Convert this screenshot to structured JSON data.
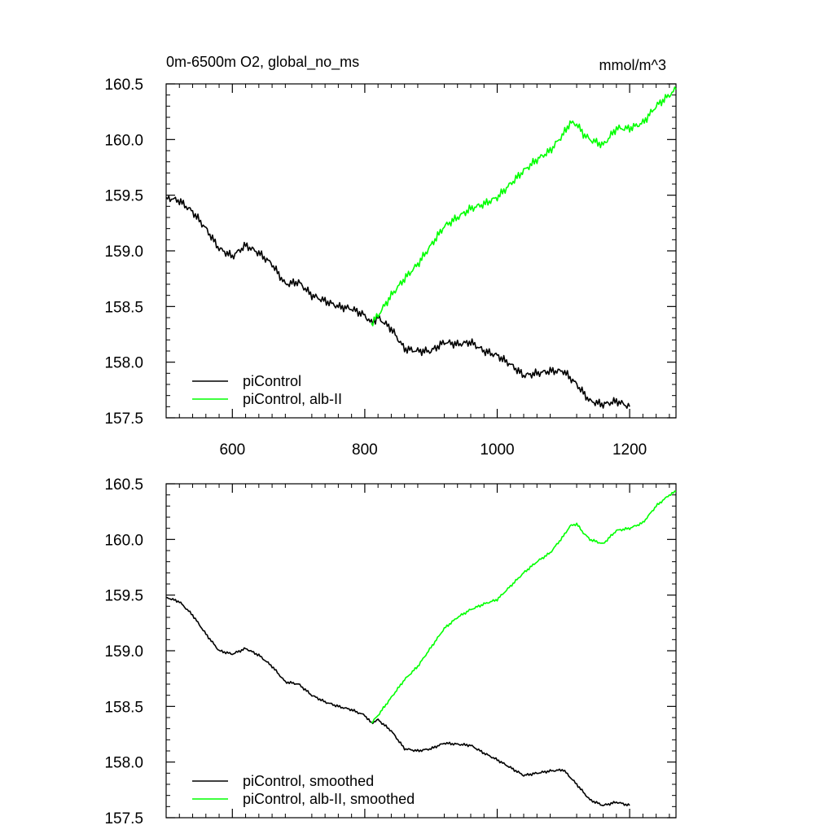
{
  "colors": {
    "control": "#000000",
    "experiment": "#00ff00",
    "frame": "#000000",
    "background": "#ffffff"
  },
  "chart_data": [
    {
      "type": "line",
      "title": "0m-6500m O2, global_no_ms",
      "units": "mmol/m^3",
      "xlim": [
        500,
        1270
      ],
      "ylim": [
        157.5,
        160.5
      ],
      "x_ticks": [
        "600",
        "800",
        "1000",
        "1200"
      ],
      "y_ticks": [
        "157.5",
        "158.0",
        "158.5",
        "159.0",
        "159.5",
        "160.0",
        "160.5"
      ],
      "grid": false,
      "legend_position": "bottom-left",
      "series": [
        {
          "name": "piControl",
          "color": "#000000",
          "x": [
            500,
            520,
            540,
            560,
            580,
            600,
            620,
            640,
            660,
            680,
            700,
            720,
            740,
            760,
            780,
            800,
            810,
            820,
            840,
            860,
            880,
            900,
            920,
            940,
            960,
            980,
            1000,
            1020,
            1040,
            1060,
            1080,
            1100,
            1120,
            1140,
            1160,
            1180,
            1200
          ],
          "y": [
            159.48,
            159.45,
            159.35,
            159.2,
            159.02,
            158.95,
            159.05,
            158.98,
            158.88,
            158.7,
            158.72,
            158.6,
            158.55,
            158.5,
            158.48,
            158.42,
            158.35,
            158.4,
            158.3,
            158.12,
            158.1,
            158.1,
            158.18,
            158.16,
            158.18,
            158.1,
            158.06,
            157.98,
            157.88,
            157.9,
            157.92,
            157.92,
            157.8,
            157.65,
            157.62,
            157.65,
            157.6
          ]
        },
        {
          "name": "piControl, alb-II",
          "color": "#00ff00",
          "x": [
            810,
            820,
            840,
            860,
            880,
            900,
            920,
            940,
            960,
            980,
            1000,
            1020,
            1040,
            1060,
            1080,
            1100,
            1110,
            1120,
            1130,
            1140,
            1160,
            1180,
            1200,
            1220,
            1240,
            1260,
            1270
          ],
          "y": [
            158.35,
            158.42,
            158.6,
            158.75,
            158.88,
            159.05,
            159.22,
            159.3,
            159.38,
            159.42,
            159.48,
            159.6,
            159.72,
            159.82,
            159.9,
            160.05,
            160.15,
            160.14,
            160.05,
            160.0,
            159.95,
            160.1,
            160.1,
            160.15,
            160.3,
            160.4,
            160.45
          ]
        }
      ]
    },
    {
      "type": "line",
      "xlim": [
        500,
        1270
      ],
      "ylim": [
        157.5,
        160.5
      ],
      "y_ticks": [
        "157.5",
        "158.0",
        "158.5",
        "159.0",
        "159.5",
        "160.0",
        "160.5"
      ],
      "grid": false,
      "legend_position": "bottom-left",
      "series": [
        {
          "name": "piControl, smoothed",
          "color": "#000000",
          "x": [
            500,
            520,
            540,
            560,
            580,
            600,
            620,
            640,
            660,
            680,
            700,
            720,
            740,
            760,
            780,
            800,
            810,
            820,
            840,
            860,
            880,
            900,
            920,
            940,
            960,
            980,
            1000,
            1020,
            1040,
            1060,
            1080,
            1100,
            1120,
            1140,
            1160,
            1180,
            1200
          ],
          "y": [
            159.48,
            159.44,
            159.32,
            159.15,
            159.0,
            158.97,
            159.02,
            158.96,
            158.86,
            158.72,
            158.7,
            158.6,
            158.54,
            158.5,
            158.47,
            158.42,
            158.35,
            158.38,
            158.28,
            158.12,
            158.1,
            158.12,
            158.17,
            158.16,
            158.15,
            158.08,
            158.02,
            157.95,
            157.88,
            157.9,
            157.92,
            157.93,
            157.8,
            157.66,
            157.61,
            157.64,
            157.61
          ]
        },
        {
          "name": "piControl, alb-II, smoothed",
          "color": "#00ff00",
          "x": [
            810,
            820,
            840,
            860,
            880,
            900,
            920,
            940,
            960,
            980,
            1000,
            1020,
            1040,
            1060,
            1080,
            1100,
            1110,
            1120,
            1130,
            1140,
            1160,
            1180,
            1200,
            1220,
            1240,
            1260,
            1270
          ],
          "y": [
            158.35,
            158.42,
            158.58,
            158.74,
            158.86,
            159.03,
            159.2,
            159.3,
            159.37,
            159.42,
            159.46,
            159.58,
            159.7,
            159.8,
            159.88,
            160.03,
            160.12,
            160.14,
            160.06,
            160.0,
            159.96,
            160.08,
            160.1,
            160.15,
            160.3,
            160.4,
            160.43
          ]
        }
      ]
    }
  ]
}
